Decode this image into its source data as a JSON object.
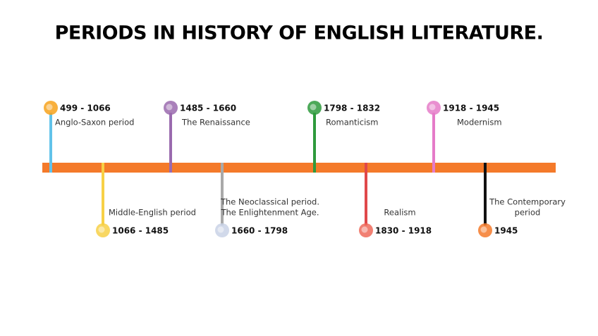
{
  "title": "PERIODS IN HISTORY OF ENGLISH LITERATURE.",
  "periods": [
    {
      "dates": "499 - 1066",
      "label": [
        "Anglo-Saxon period"
      ],
      "color": "#62c3ea"
    },
    {
      "dates": "1066 - 1485",
      "label": [
        "Middle-English period"
      ],
      "color": "#f7d046"
    },
    {
      "dates": "1485 - 1660",
      "label": [
        "The Renaissance"
      ],
      "color": "#9a6aae"
    },
    {
      "dates": "1660 - 1798",
      "label": [
        "The Neoclassical period.",
        "The Enlightenment Age."
      ],
      "color": "#a9a9a9"
    },
    {
      "dates": "1798 - 1832",
      "label": [
        "Romanticism"
      ],
      "color": "#2e9a3c"
    },
    {
      "dates": "1830 - 1918",
      "label": [
        "Realism"
      ],
      "color": "#e0484a"
    },
    {
      "dates": "1918 - 1945",
      "label": [
        "Modernism"
      ],
      "color": "#e57bc8"
    },
    {
      "dates": "1945",
      "label": [
        "The Contemporary",
        "period"
      ],
      "color": "#111111"
    }
  ]
}
